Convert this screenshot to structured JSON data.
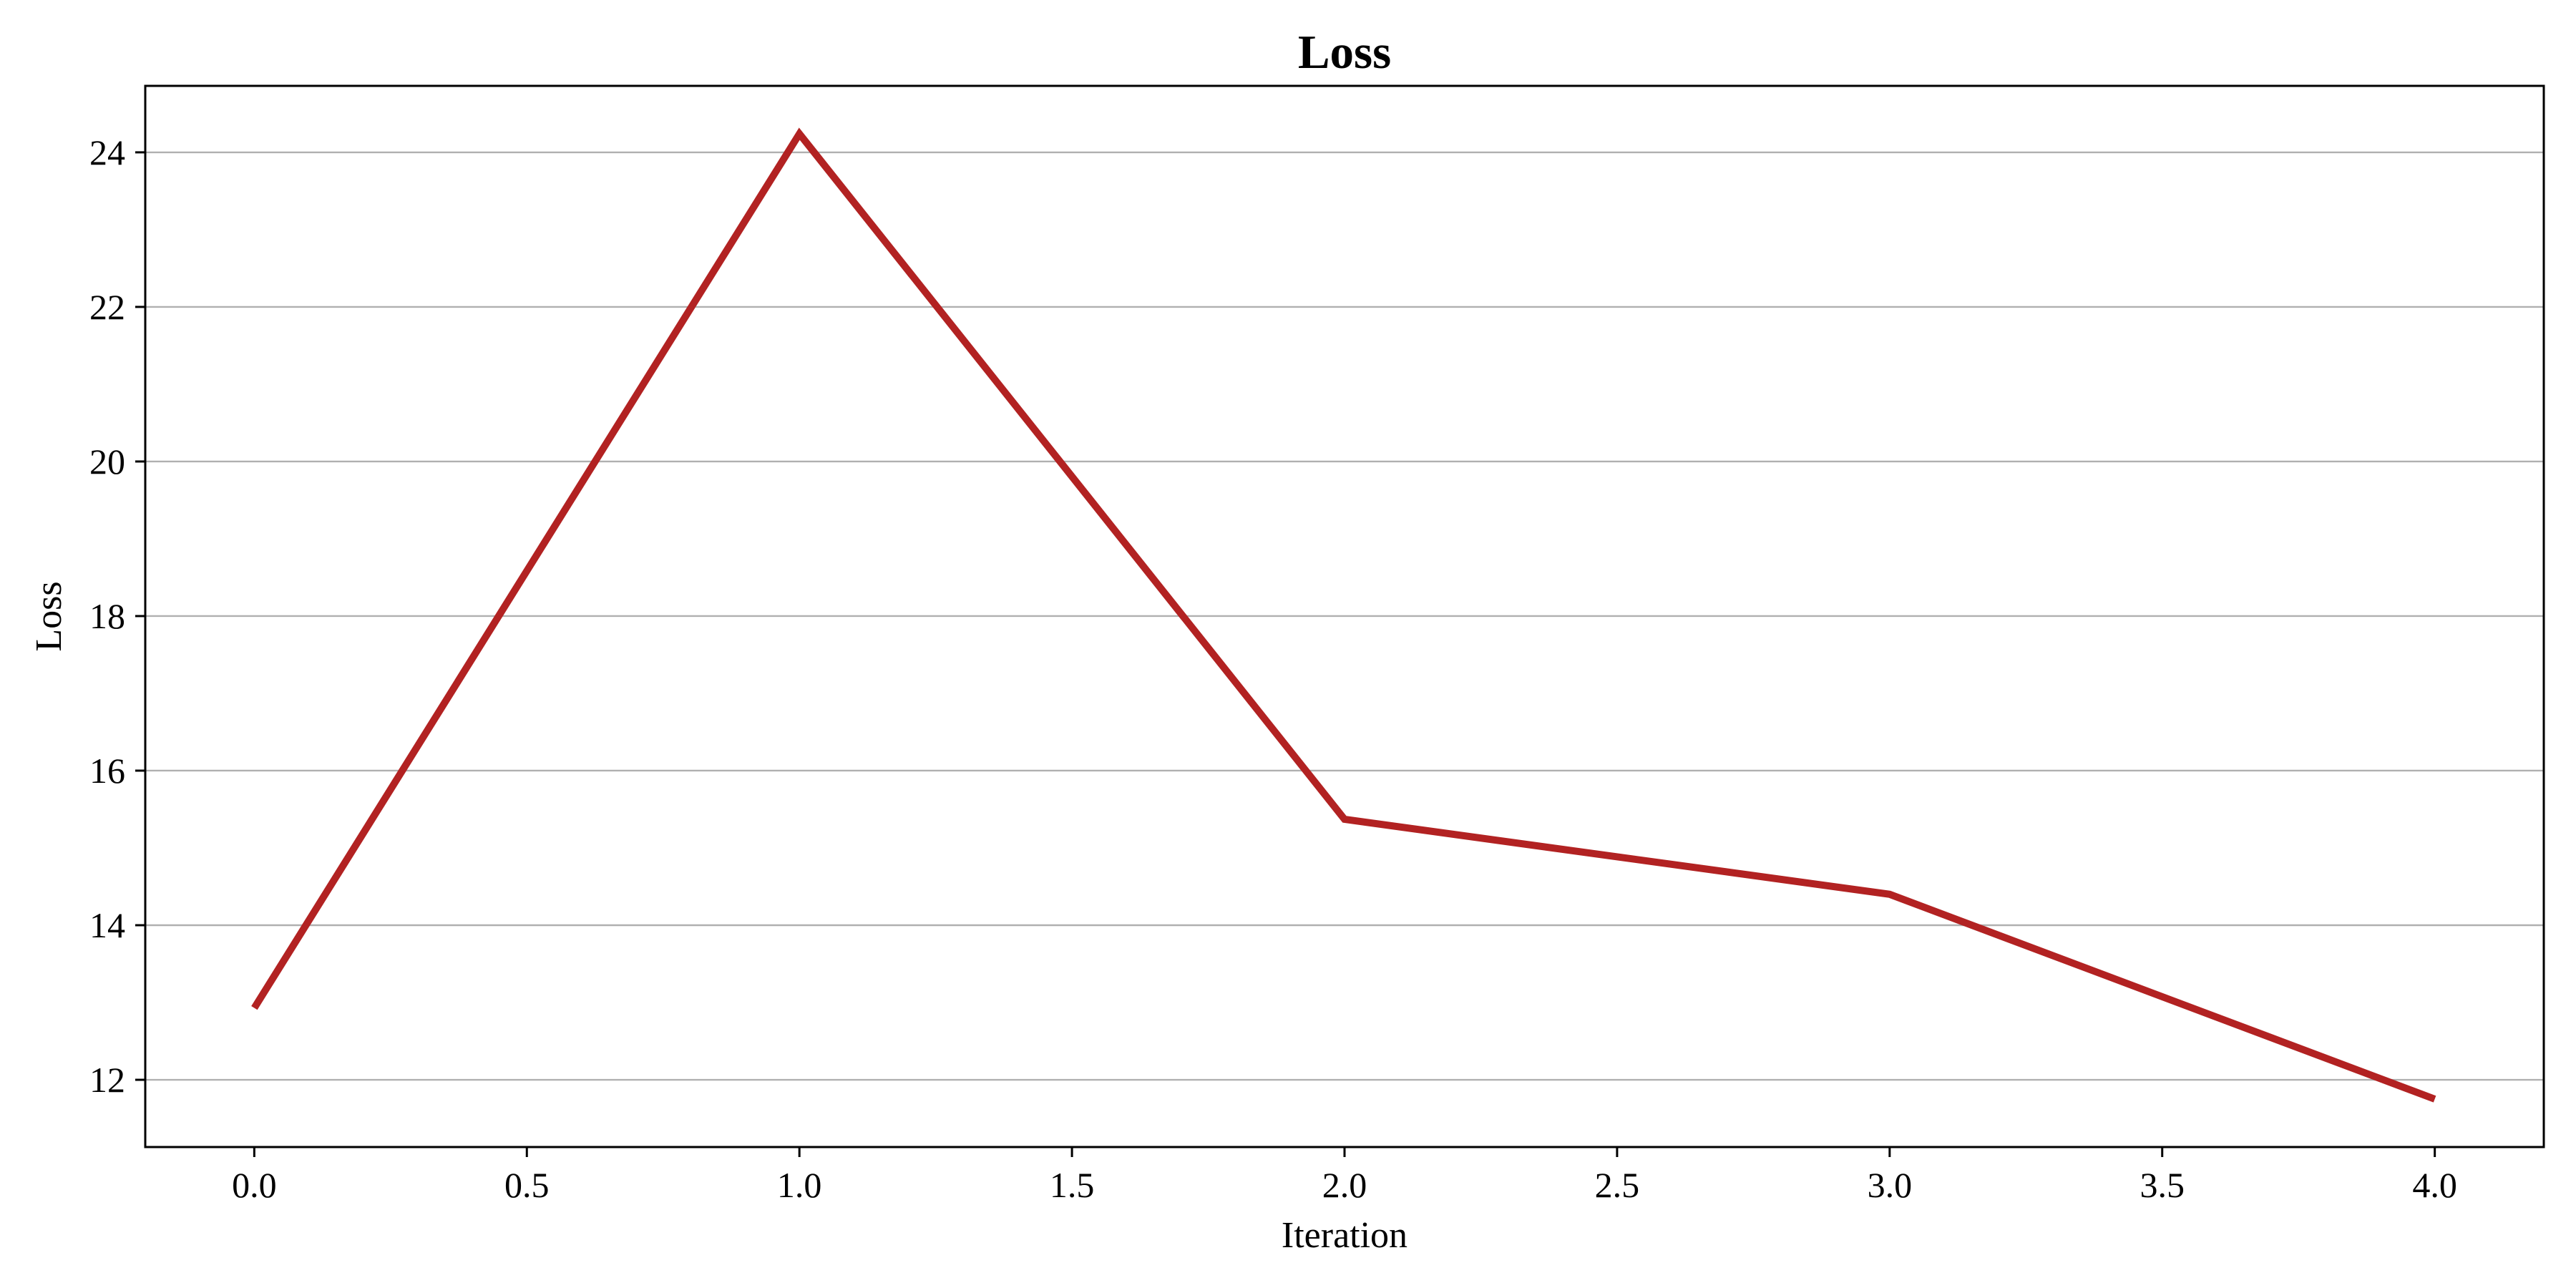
{
  "chart_data": {
    "type": "line",
    "title": "Loss",
    "xlabel": "Iteration",
    "ylabel": "Loss",
    "xlim": [
      -0.2,
      4.2
    ],
    "ylim": [
      11.13,
      24.86
    ],
    "x_ticks": [
      0.0,
      0.5,
      1.0,
      1.5,
      2.0,
      2.5,
      3.0,
      3.5,
      4.0
    ],
    "x_tick_labels": [
      "0.0",
      "0.5",
      "1.0",
      "1.5",
      "2.0",
      "2.5",
      "3.0",
      "3.5",
      "4.0"
    ],
    "y_ticks": [
      12,
      14,
      16,
      18,
      20,
      22,
      24
    ],
    "y_tick_labels": [
      "12",
      "14",
      "16",
      "18",
      "20",
      "22",
      "24"
    ],
    "grid": "horizontal",
    "series": [
      {
        "color": "#b22222",
        "x": [
          0,
          1,
          2,
          3,
          4
        ],
        "values": [
          12.93,
          24.24,
          15.37,
          14.4,
          11.75
        ]
      }
    ]
  }
}
